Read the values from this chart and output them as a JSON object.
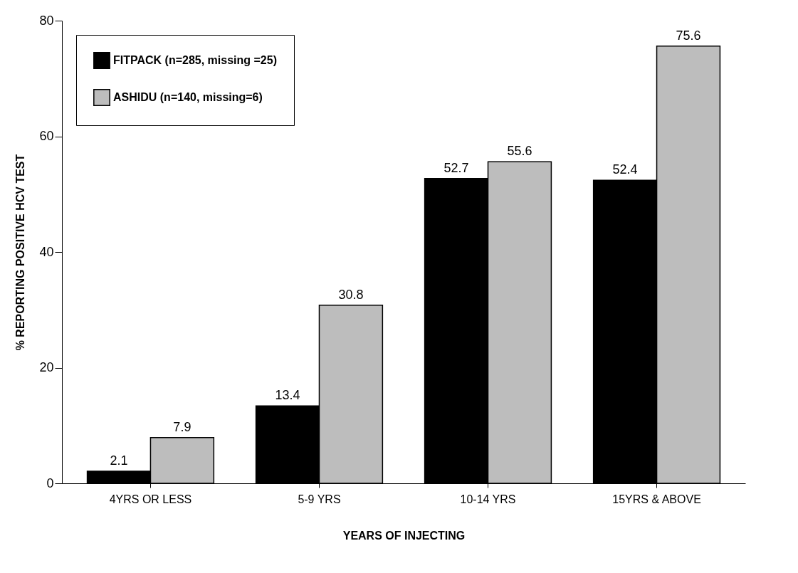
{
  "chart_data": {
    "type": "bar",
    "xlabel": "YEARS OF INJECTING",
    "ylabel": "% REPORTING POSITIVE HCV TEST",
    "categories": [
      "4YRS OR LESS",
      "5-9 YRS",
      "10-14 YRS",
      "15YRS & ABOVE"
    ],
    "series": [
      {
        "name": "FITPACK (n=285, missing =25)",
        "color": "#000000",
        "values": [
          2.1,
          13.4,
          52.7,
          52.4
        ]
      },
      {
        "name": "ASHIDU (n=140, missing=6)",
        "color": "#bdbdbd",
        "values": [
          7.9,
          30.8,
          55.6,
          75.6
        ]
      }
    ],
    "ylim": [
      0,
      80
    ],
    "yticks": [
      0,
      20,
      40,
      60,
      80
    ],
    "grid": false,
    "legend": "top left",
    "data_labels": true
  }
}
